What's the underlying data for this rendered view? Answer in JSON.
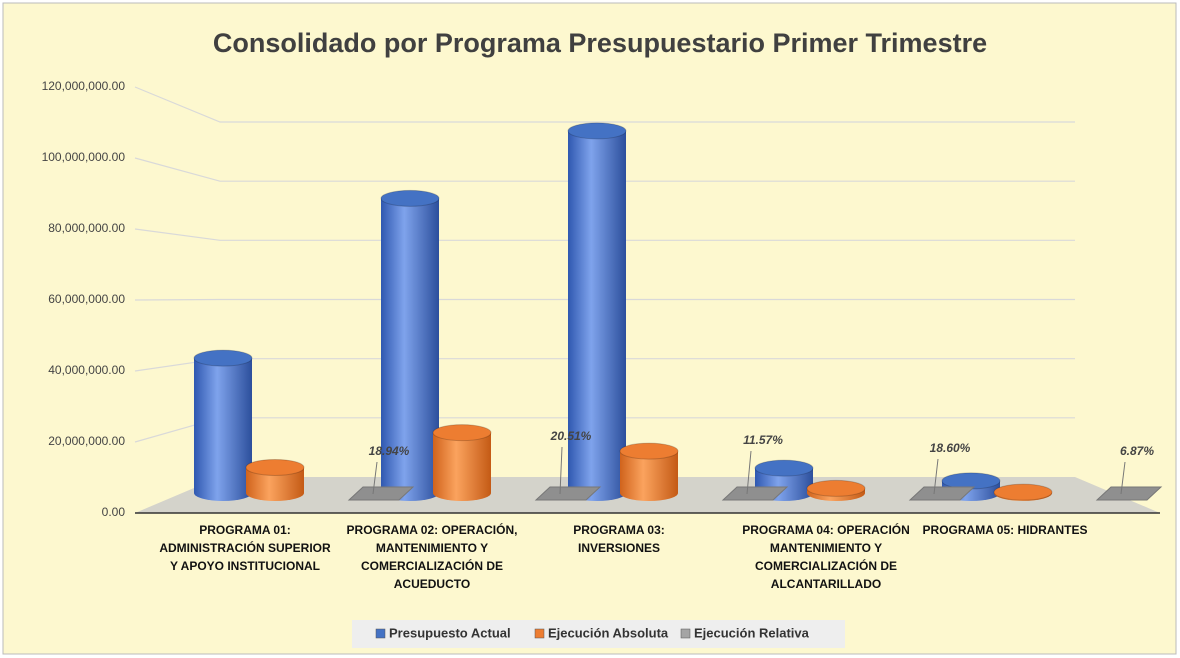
{
  "chart_data": {
    "type": "bar3d",
    "title": "Consolidado  por Programa Presupuestario Primer Trimestre",
    "categories": [
      "PROGRAMA 01:\nADMINISTRACIÓN SUPERIOR\nY  APOYO  INSTITUCIONAL",
      "PROGRAMA 02: OPERACIÓN,\nMANTENIMIENTO Y\nCOMERCIALIZACIÓN  DE\nACUEDUCTO",
      "PROGRAMA 03:\nINVERSIONES",
      "PROGRAMA 04:  OPERACIÓN\nMANTENIMIENTO Y\nCOMERCIALIZACIÓN DE\nALCANTARILLADO",
      "PROGRAMA 05: HIDRANTES"
    ],
    "series": [
      {
        "name": "Presupuesto Actual",
        "color": "#4472c4",
        "values": [
          38000000,
          83000000,
          102000000,
          7000000,
          3400000
        ]
      },
      {
        "name": "Ejecución Absoluta",
        "color": "#ed7d31",
        "values": [
          7200000,
          17000000,
          11800000,
          1300000,
          230000
        ]
      },
      {
        "name": "Ejecución Relativa",
        "color": "#a5a5a5",
        "values": [
          0.1894,
          0.2051,
          0.1157,
          0.186,
          0.0687
        ],
        "value_labels": [
          "18.94%",
          "20.51%",
          "11.57%",
          "18.60%",
          "6.87%"
        ]
      }
    ],
    "ylim": [
      0,
      120000000
    ],
    "yticks": [
      {
        "value": 0,
        "label": "0.00"
      },
      {
        "value": 20000000,
        "label": "20,000,000.00"
      },
      {
        "value": 40000000,
        "label": "40,000,000.00"
      },
      {
        "value": 60000000,
        "label": "60,000,000.00"
      },
      {
        "value": 80000000,
        "label": "80,000,000.00"
      },
      {
        "value": 100000000,
        "label": "100,000,000.00"
      },
      {
        "value": 120000000,
        "label": "120,000,000.00"
      }
    ],
    "grid": true,
    "legend": "bottom"
  }
}
